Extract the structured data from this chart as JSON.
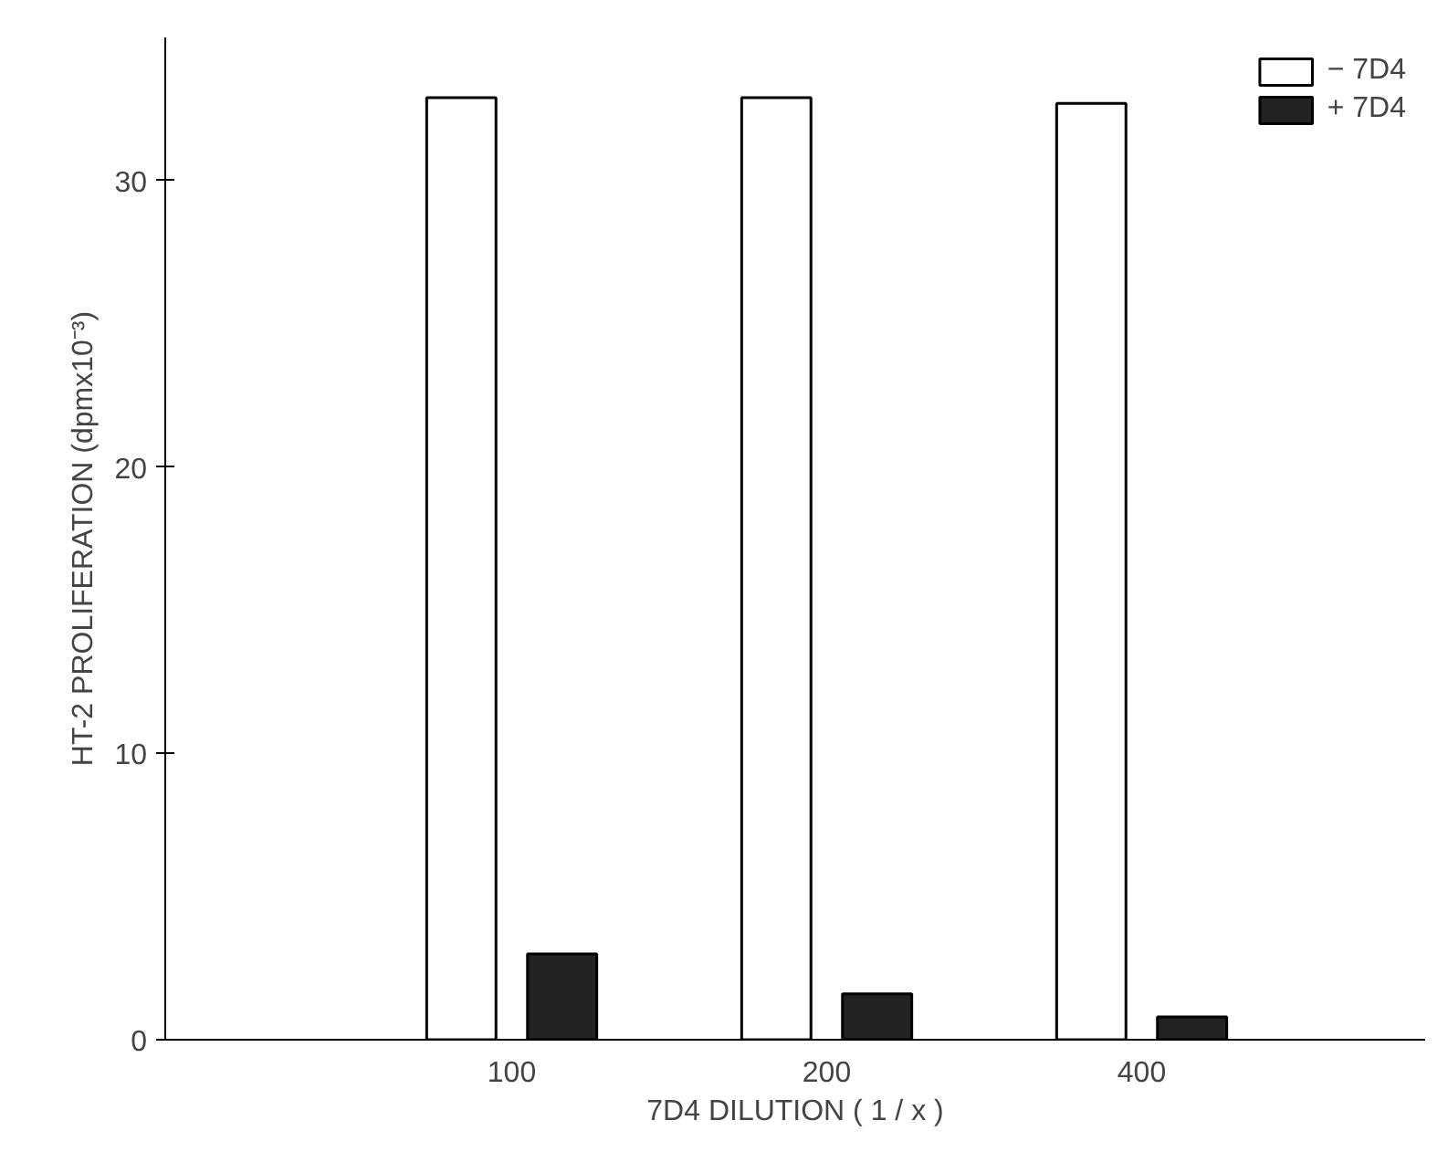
{
  "chart_data": {
    "type": "bar",
    "xlabel": "7D4 DILUTION ( 1 / x )",
    "ylabel": "HT-2 PROLIFERATION (dpmx10⁻³)",
    "categories": [
      "100",
      "200",
      "400"
    ],
    "series": [
      {
        "name": "− 7D4",
        "color": "#ffffff",
        "values": [
          32.9,
          32.9,
          32.7
        ]
      },
      {
        "name": "+ 7D4",
        "color": "#222222",
        "values": [
          3.0,
          1.6,
          0.8
        ]
      }
    ],
    "ylim": [
      0,
      35
    ],
    "yticks": [
      0,
      10,
      20,
      30
    ],
    "grid": false,
    "legend": "top right"
  }
}
